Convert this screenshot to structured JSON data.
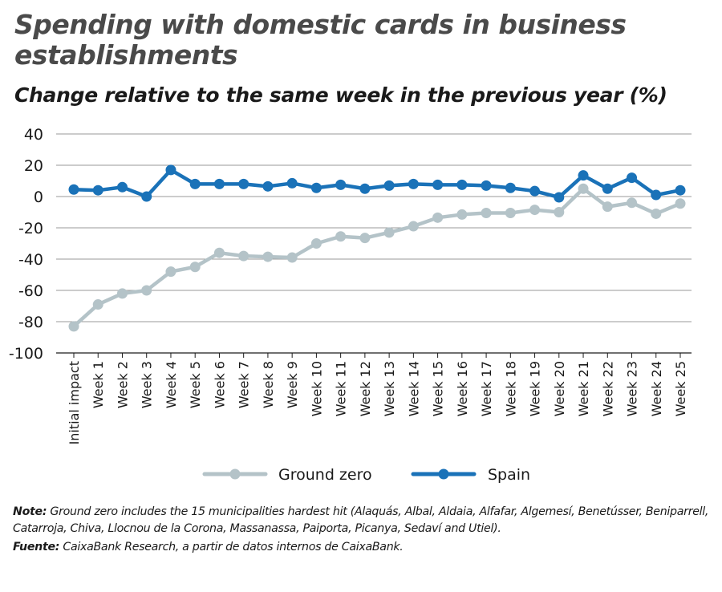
{
  "title": "Spending with domestic cards in business establishments",
  "subtitle": "Change relative to the same week in the previous year (%)",
  "note_label": "Note:",
  "note_text": "Ground zero includes the 15 municipalities hardest hit (Alaquás, Albal, Aldaia, Alfafar, Algemesí, Benetússer, Beniparrell, Catarroja, Chiva, Llocnou de la Corona, Massanassa, Paiporta, Picanya, Sedaví and Utiel).",
  "source_label": "Fuente:",
  "source_text": "CaixaBank Research, a partir de datos internos de CaixaBank.",
  "colors": {
    "ground_zero": "#b4c3c8",
    "spain": "#1a72b8",
    "grid": "#9a9a9a"
  },
  "chart_data": {
    "type": "line",
    "title": "Spending with domestic cards in business establishments",
    "subtitle": "Change relative to the same week in the previous year (%)",
    "xlabel": "",
    "ylabel": "",
    "ylim": [
      -100,
      40
    ],
    "yticks": [
      40,
      20,
      0,
      -20,
      -40,
      -60,
      -80,
      -100
    ],
    "grid": true,
    "legend": "bottom",
    "categories": [
      "Initial impact",
      "Week 1",
      "Week 2",
      "Week 3",
      "Week 4",
      "Week 5",
      "Week 6",
      "Week 7",
      "Week 8",
      "Week 9",
      "Week 10",
      "Week 11",
      "Week 12",
      "Week 13",
      "Week 14",
      "Week 15",
      "Week 16",
      "Week 17",
      "Week 18",
      "Week 19",
      "Week 20",
      "Week 21",
      "Week 22",
      "Week 23",
      "Week 24",
      "Week 25"
    ],
    "series": [
      {
        "name": "Ground zero",
        "color": "#b4c3c8",
        "values": [
          -83,
          -69,
          -62,
          -60,
          -48,
          -45,
          -36,
          -38,
          -38.5,
          -39,
          -30,
          -25.5,
          -26.5,
          -23,
          -19,
          -13.5,
          -11.5,
          -10.5,
          -10.5,
          -8.5,
          -10,
          5,
          -6.5,
          -4,
          -11,
          -4.5
        ]
      },
      {
        "name": "Spain",
        "color": "#1a72b8",
        "values": [
          4.5,
          4,
          6,
          0,
          17,
          8,
          8,
          8,
          6.5,
          8.5,
          5.5,
          7.5,
          5,
          7,
          8,
          7.5,
          7.5,
          7,
          5.5,
          3.5,
          -0.5,
          13.5,
          5,
          12,
          1,
          4
        ]
      }
    ]
  }
}
